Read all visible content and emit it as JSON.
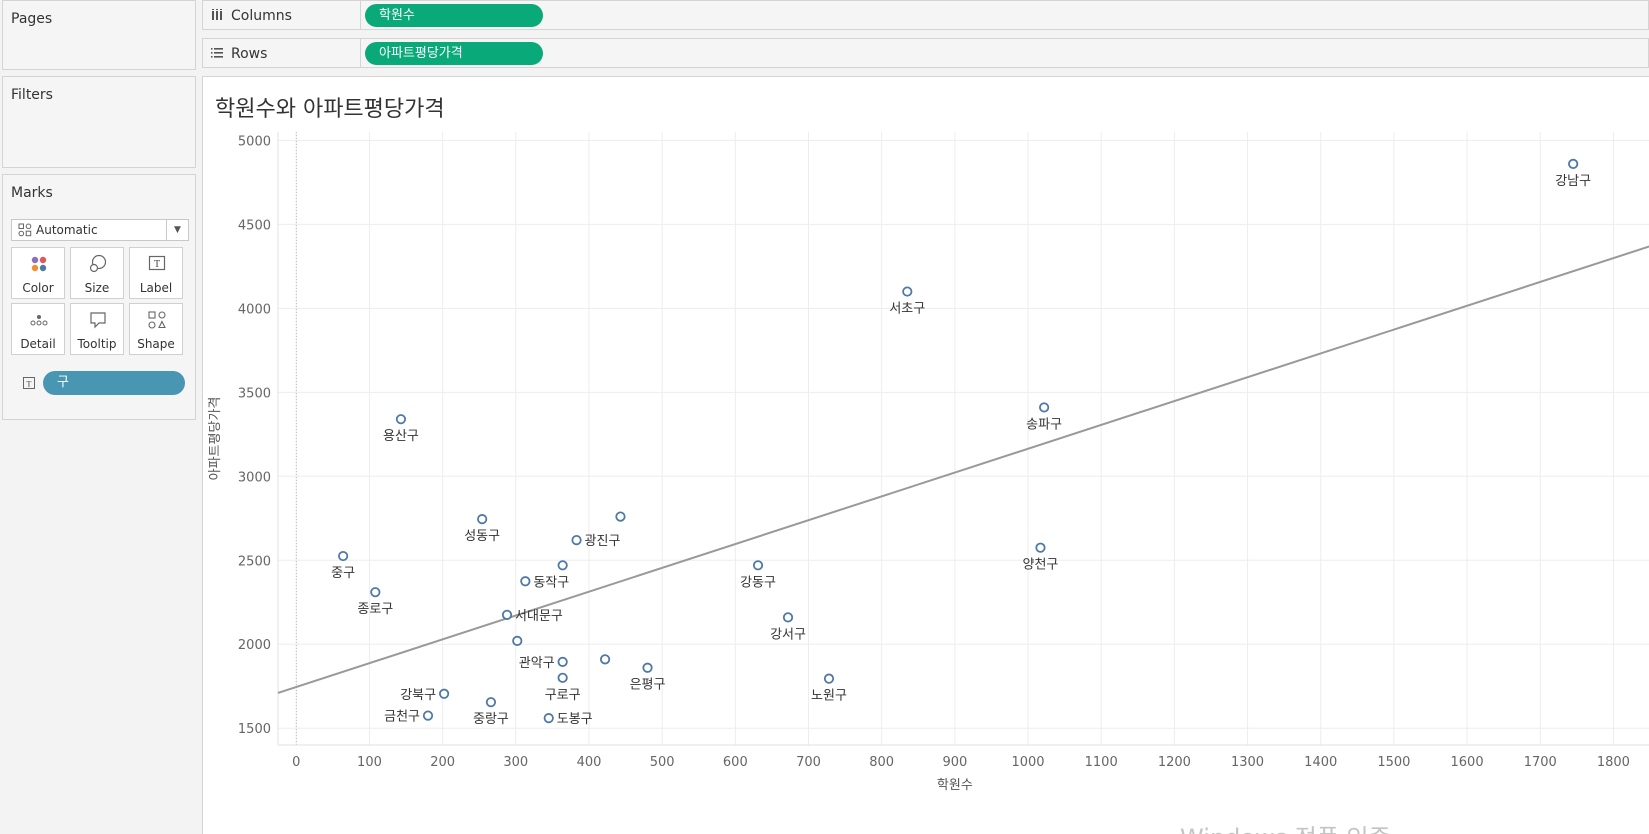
{
  "panels": {
    "pages": "Pages",
    "filters": "Filters",
    "marks": "Marks"
  },
  "marks": {
    "type": "Automatic",
    "type_icon": "automatic-marks-icon",
    "buttons": [
      {
        "label": "Color",
        "icon": "color-icon"
      },
      {
        "label": "Size",
        "icon": "size-icon"
      },
      {
        "label": "Label",
        "icon": "label-icon"
      },
      {
        "label": "Detail",
        "icon": "detail-icon"
      },
      {
        "label": "Tooltip",
        "icon": "tooltip-icon"
      },
      {
        "label": "Shape",
        "icon": "shape-icon"
      }
    ],
    "label_pill": "구",
    "label_pill_color": "#4996b2"
  },
  "shelves": {
    "columns_label": "Columns",
    "columns_pill": "학원수",
    "rows_label": "Rows",
    "rows_pill": "아파트평당가격",
    "pill_color": "#0aa97a"
  },
  "viz": {
    "title": "학원수와 아파트평당가격"
  },
  "chart_data": {
    "type": "scatter",
    "title": "학원수와 아파트평당가격",
    "xlabel": "학원수",
    "ylabel": "아파트평당가격",
    "xlim": [
      -25,
      1850
    ],
    "ylim": [
      1400,
      5050
    ],
    "x_ticks": [
      0,
      100,
      200,
      300,
      400,
      500,
      600,
      700,
      800,
      900,
      1000,
      1100,
      1200,
      1300,
      1400,
      1500,
      1600,
      1700,
      1800
    ],
    "y_ticks": [
      1500,
      2000,
      2500,
      3000,
      3500,
      4000,
      4500,
      5000
    ],
    "grid": true,
    "marker_color": "#4e79a7",
    "trend_line": {
      "color": "#999999",
      "x": [
        -25,
        1850
      ],
      "y": [
        1710,
        4370
      ]
    },
    "points": [
      {
        "x": 1745,
        "y": 4860,
        "label": "강남구",
        "pos": "below"
      },
      {
        "x": 835,
        "y": 4100,
        "label": "서초구",
        "pos": "below"
      },
      {
        "x": 1022,
        "y": 3410,
        "label": "송파구",
        "pos": "below"
      },
      {
        "x": 143,
        "y": 3340,
        "label": "용산구",
        "pos": "below"
      },
      {
        "x": 443,
        "y": 2760,
        "label": "",
        "pos": "none"
      },
      {
        "x": 254,
        "y": 2745,
        "label": "성동구",
        "pos": "below"
      },
      {
        "x": 383,
        "y": 2620,
        "label": "광진구",
        "pos": "right"
      },
      {
        "x": 1017,
        "y": 2575,
        "label": "양천구",
        "pos": "below"
      },
      {
        "x": 64,
        "y": 2525,
        "label": "중구",
        "pos": "below"
      },
      {
        "x": 364,
        "y": 2470,
        "label": "",
        "pos": "none"
      },
      {
        "x": 631,
        "y": 2470,
        "label": "강동구",
        "pos": "below"
      },
      {
        "x": 313,
        "y": 2375,
        "label": "동작구",
        "pos": "right"
      },
      {
        "x": 108,
        "y": 2310,
        "label": "종로구",
        "pos": "below"
      },
      {
        "x": 288,
        "y": 2175,
        "label": "서대문구",
        "pos": "right"
      },
      {
        "x": 672,
        "y": 2160,
        "label": "강서구",
        "pos": "below"
      },
      {
        "x": 302,
        "y": 2020,
        "label": "",
        "pos": "none"
      },
      {
        "x": 422,
        "y": 1910,
        "label": "",
        "pos": "none"
      },
      {
        "x": 364,
        "y": 1895,
        "label": "관악구",
        "pos": "left"
      },
      {
        "x": 480,
        "y": 1860,
        "label": "은평구",
        "pos": "below"
      },
      {
        "x": 364,
        "y": 1800,
        "label": "구로구",
        "pos": "below"
      },
      {
        "x": 728,
        "y": 1795,
        "label": "노원구",
        "pos": "below"
      },
      {
        "x": 202,
        "y": 1705,
        "label": "강북구",
        "pos": "left"
      },
      {
        "x": 266,
        "y": 1655,
        "label": "중랑구",
        "pos": "below"
      },
      {
        "x": 180,
        "y": 1575,
        "label": "금천구",
        "pos": "left"
      },
      {
        "x": 345,
        "y": 1560,
        "label": "도봉구",
        "pos": "right"
      }
    ]
  },
  "watermark": "Windows 정품 인증"
}
